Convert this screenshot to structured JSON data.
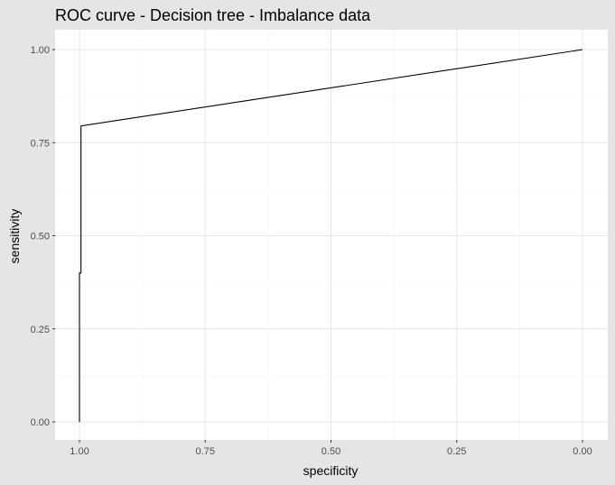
{
  "chart_data": {
    "type": "line",
    "title": "ROC curve - Decision tree - Imbalance data",
    "xlabel": "specificity",
    "ylabel": "sensitivity",
    "x_reversed": true,
    "xlim": [
      1.0,
      0.0
    ],
    "ylim": [
      0.0,
      1.0
    ],
    "x_ticks": [
      1.0,
      0.75,
      0.5,
      0.25,
      0.0
    ],
    "x_tick_labels": [
      "1.00",
      "0.75",
      "0.50",
      "0.25",
      "0.00"
    ],
    "y_ticks": [
      0.0,
      0.25,
      0.5,
      0.75,
      1.0
    ],
    "y_tick_labels": [
      "0.00",
      "0.25",
      "0.50",
      "0.75",
      "1.00"
    ],
    "grid": true,
    "series": [
      {
        "color": "#000000",
        "points": [
          {
            "x": 1.0,
            "y": 0.0
          },
          {
            "x": 1.0,
            "y": 0.4
          },
          {
            "x": 0.997,
            "y": 0.4
          },
          {
            "x": 0.997,
            "y": 0.795
          },
          {
            "x": 0.0,
            "y": 1.0
          }
        ]
      }
    ]
  },
  "colors": {
    "background": "#e5e5e5",
    "panel": "#ffffff",
    "grid": "#e6e6e6",
    "line": "#000000",
    "tick_text": "#4d4d4d"
  }
}
